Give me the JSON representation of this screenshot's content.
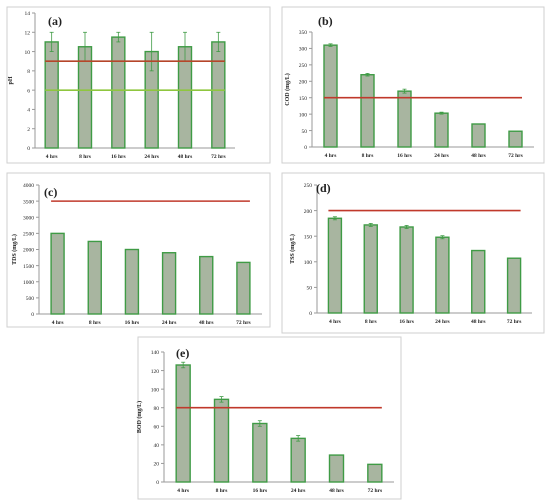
{
  "chart_data": [
    {
      "panel_label": "(a)",
      "type": "bar",
      "ylabel": "pH",
      "ylim": [
        0,
        14
      ],
      "yticks": [
        0,
        2,
        4,
        6,
        8,
        10,
        12,
        14
      ],
      "categories": [
        "4 hrs",
        "8 hrs",
        "16 hrs",
        "24 hrs",
        "48 hrs",
        "72 hrs"
      ],
      "values": [
        11.0,
        10.5,
        11.5,
        10.0,
        10.5,
        11.0
      ],
      "errors": [
        1.0,
        1.5,
        0.5,
        2.0,
        1.5,
        1.0
      ],
      "reference_lines": [
        {
          "value": 9.0,
          "color": "#b5462a"
        },
        {
          "value": 6.0,
          "color": "#8fc63f"
        }
      ]
    },
    {
      "panel_label": "(b)",
      "type": "bar",
      "ylabel": "COD (mg/L)",
      "ylim": [
        0,
        350
      ],
      "yticks": [
        0,
        50,
        100,
        150,
        200,
        250,
        300,
        350
      ],
      "categories": [
        "4 hrs",
        "8 hrs",
        "16 hrs",
        "24 hrs",
        "48 hrs",
        "72 hrs"
      ],
      "values": [
        310,
        220,
        170,
        103,
        70,
        48
      ],
      "errors": [
        4,
        4,
        6,
        3,
        0,
        0
      ],
      "reference_lines": [
        {
          "value": 150,
          "color": "#c0392b"
        }
      ]
    },
    {
      "panel_label": "(c)",
      "type": "bar",
      "ylabel": "TDS (mg/L)",
      "ylim": [
        0,
        4000
      ],
      "yticks": [
        0,
        500,
        1000,
        1500,
        2000,
        2500,
        3000,
        3500,
        4000
      ],
      "categories": [
        "4 hrs",
        "8 hrs",
        "16 hrs",
        "24 hrs",
        "48 hrs",
        "72 hrs"
      ],
      "values": [
        2500,
        2250,
        2000,
        1900,
        1780,
        1600
      ],
      "errors": [
        0,
        0,
        0,
        0,
        0,
        0
      ],
      "reference_lines": [
        {
          "value": 3500,
          "color": "#c0392b"
        }
      ]
    },
    {
      "panel_label": "(d)",
      "type": "bar",
      "ylabel": "TSS (mg/L)",
      "ylim": [
        0,
        250
      ],
      "yticks": [
        0,
        50,
        100,
        150,
        200,
        250
      ],
      "categories": [
        "4 hrs",
        "8 hrs",
        "16 hrs",
        "24 hrs",
        "48 hrs",
        "72 hrs"
      ],
      "values": [
        185,
        172,
        168,
        148,
        122,
        107
      ],
      "errors": [
        3,
        3,
        3,
        3,
        0,
        0
      ],
      "reference_lines": [
        {
          "value": 200,
          "color": "#c0392b"
        }
      ]
    },
    {
      "panel_label": "(e)",
      "type": "bar",
      "ylabel": "BOD (mg/L)",
      "ylim": [
        0,
        140
      ],
      "yticks": [
        0,
        20,
        40,
        60,
        80,
        100,
        120,
        140
      ],
      "categories": [
        "4 hrs",
        "8 hrs",
        "16 hrs",
        "24 hrs",
        "48 hrs",
        "72 hrs"
      ],
      "values": [
        126,
        89,
        63,
        47,
        29,
        19
      ],
      "errors": [
        3,
        3,
        3,
        3,
        0,
        0
      ],
      "reference_lines": [
        {
          "value": 80,
          "color": "#c0392b"
        }
      ]
    }
  ],
  "style": {
    "bar_fill": "#a8b5a0",
    "bar_stroke": "#3f9b45",
    "error_color": "#3f9b45",
    "axis_color": "#9a9a9a",
    "frame_color": "#cfcfcf",
    "text_color": "#222222"
  }
}
